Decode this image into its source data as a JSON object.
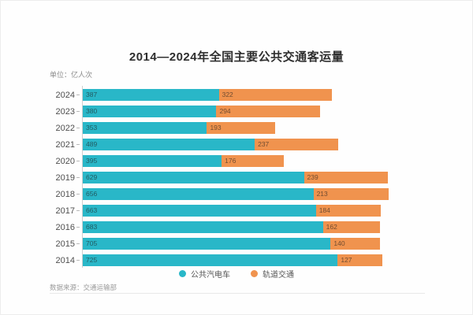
{
  "title": "2014—2024年全国主要公共交通客运量",
  "unit_label": "单位：亿人次",
  "source_label": "数据来源：交通运输部",
  "colors": {
    "bus": "#29B7C8",
    "rail": "#F0934E"
  },
  "legend": {
    "bus_label": "公共汽电车",
    "rail_label": "轨道交通"
  },
  "chart_data": {
    "type": "bar",
    "orientation": "horizontal",
    "stacked": true,
    "title": "2014—2024年全国主要公共交通客运量",
    "unit": "亿人次",
    "categories": [
      "2024",
      "2023",
      "2022",
      "2021",
      "2020",
      "2019",
      "2018",
      "2017",
      "2016",
      "2015",
      "2014"
    ],
    "series": [
      {
        "name": "公共汽电车",
        "color": "#29B7C8",
        "values": [
          387,
          380,
          353,
          489,
          395,
          629,
          656,
          663,
          683,
          705,
          725
        ]
      },
      {
        "name": "轨道交通",
        "color": "#F0934E",
        "values": [
          322,
          294,
          193,
          237,
          176,
          239,
          213,
          184,
          162,
          140,
          127
        ]
      }
    ],
    "value_labels": "inside-start",
    "legend_position": "bottom-center",
    "grid": false,
    "xlim": [
      0,
      900
    ],
    "source": "数据来源：交通运输部"
  }
}
